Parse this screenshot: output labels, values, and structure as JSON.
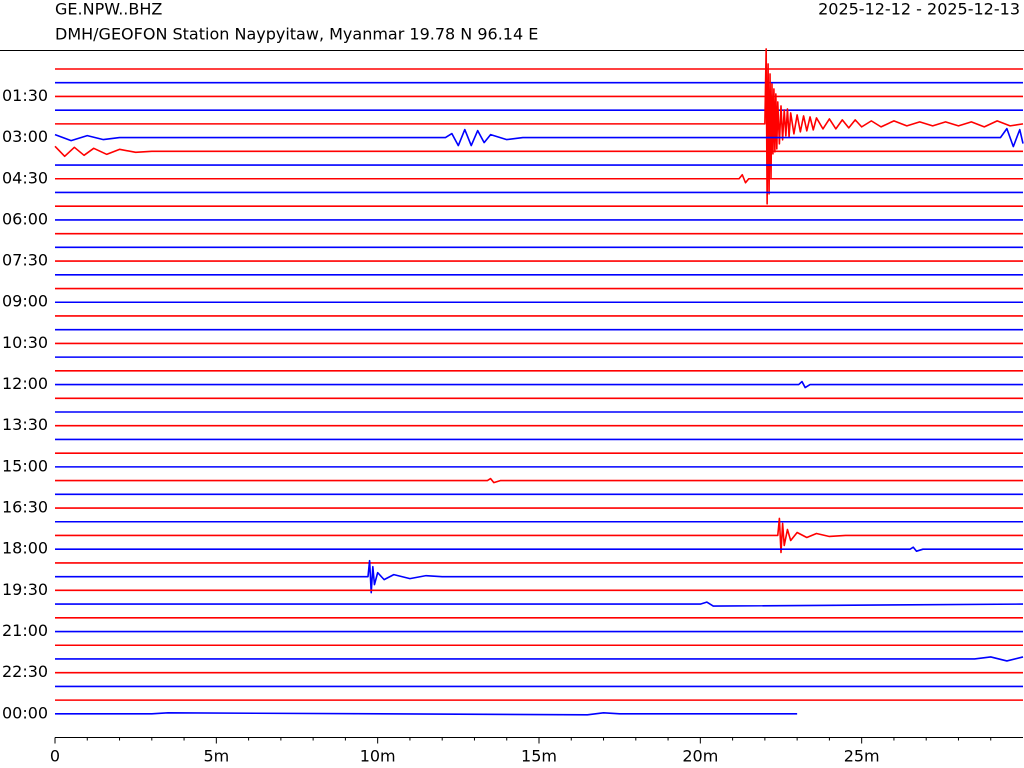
{
  "chart_data": {
    "type": "helicorder",
    "title": "GE.NPW..BHZ",
    "subtitle": "DMH/GEOFON Station Naypyitaw, Myanmar  19.78 N 96.14 E",
    "date_range": "2025-12-12 - 2025-12-13",
    "xlim": [
      0,
      30
    ],
    "xticks": [
      0,
      {
        "value": 5,
        "label": "5m"
      },
      {
        "value": 10,
        "label": "10m"
      },
      {
        "value": 15,
        "label": "15m"
      },
      {
        "value": 20,
        "label": "20m"
      },
      {
        "value": 25,
        "label": "25m"
      }
    ],
    "xminorticks": [
      1,
      2,
      3,
      4,
      6,
      7,
      8,
      9,
      11,
      12,
      13,
      14,
      16,
      17,
      18,
      19,
      21,
      22,
      23,
      24,
      26,
      27,
      28,
      29
    ],
    "categories": [
      null,
      null,
      "01:30",
      null,
      null,
      "03:00",
      null,
      null,
      "04:30",
      null,
      null,
      "06:00",
      null,
      null,
      "07:30",
      null,
      null,
      "09:00",
      null,
      null,
      "10:30",
      null,
      null,
      "12:00",
      null,
      null,
      "13:30",
      null,
      null,
      "15:00",
      null,
      null,
      "16:30",
      null,
      null,
      "18:00",
      null,
      null,
      "19:30",
      null,
      null,
      "21:00",
      null,
      null,
      "22:30",
      null,
      null,
      "00:00"
    ],
    "series": [
      {
        "color": "#ff0000",
        "x": [
          0,
          30
        ],
        "values": [
          0,
          0
        ]
      },
      {
        "color": "#0000ff",
        "x": [
          0,
          30
        ],
        "values": [
          0,
          0
        ]
      },
      {
        "color": "#ff0000",
        "x": [
          0,
          30
        ],
        "values": [
          0,
          0
        ]
      },
      {
        "color": "#0000ff",
        "x": [
          0,
          30
        ],
        "values": [
          0,
          0
        ]
      },
      {
        "color": "#ff0000",
        "x": [
          0,
          22.0,
          22.04,
          22.07,
          22.1,
          22.13,
          22.16,
          22.19,
          22.22,
          22.25,
          22.28,
          22.31,
          22.34,
          22.37,
          22.4,
          22.45,
          22.5,
          22.55,
          22.6,
          22.65,
          22.7,
          22.75,
          22.8,
          22.9,
          23.0,
          23.1,
          23.2,
          23.3,
          23.4,
          23.5,
          23.6,
          23.8,
          24.0,
          24.2,
          24.4,
          24.6,
          24.8,
          25.0,
          25.3,
          25.6,
          26.0,
          26.4,
          26.8,
          27.2,
          27.6,
          28.0,
          28.4,
          28.8,
          29.2,
          29.6,
          30
        ],
        "values": [
          0,
          0,
          75,
          -80,
          60,
          -70,
          50,
          -55,
          40,
          -30,
          35,
          -28,
          30,
          -25,
          22,
          -20,
          18,
          -16,
          14,
          -12,
          15,
          -13,
          11,
          -10,
          9,
          -8,
          8,
          -7,
          7,
          -6,
          6,
          -5,
          5,
          -5,
          4,
          -4,
          4,
          -3,
          3,
          -3,
          3,
          -2,
          2,
          -2,
          2,
          -2,
          2,
          -3,
          3,
          -2,
          0
        ]
      },
      {
        "color": "#0000ff",
        "x": [
          0,
          0.5,
          1,
          1.5,
          2,
          12.1,
          12.3,
          12.5,
          12.7,
          12.9,
          13.1,
          13.3,
          13.5,
          14,
          14.5,
          29.3,
          29.5,
          29.7,
          29.9,
          30
        ],
        "values": [
          3,
          -3,
          2,
          -2,
          0,
          0,
          4,
          -8,
          8,
          -8,
          7,
          -5,
          3,
          -2,
          0,
          0,
          9,
          -9,
          8,
          -6
        ]
      },
      {
        "color": "#ff0000",
        "x": [
          0,
          0.3,
          0.6,
          0.9,
          1.2,
          1.6,
          2,
          2.5,
          3,
          30
        ],
        "values": [
          5,
          -5,
          4,
          -4,
          3,
          -3,
          2,
          -1,
          0,
          0
        ]
      },
      {
        "color": "#0000ff",
        "x": [
          0,
          30
        ],
        "values": [
          0,
          0
        ]
      },
      {
        "color": "#ff0000",
        "x": [
          0,
          21.2,
          21.3,
          21.4,
          21.5,
          30
        ],
        "values": [
          0,
          0,
          4,
          -4,
          0,
          0
        ]
      },
      {
        "color": "#0000ff",
        "x": [
          0,
          30
        ],
        "values": [
          0,
          0
        ]
      },
      {
        "color": "#ff0000",
        "x": [
          0,
          30
        ],
        "values": [
          0,
          0
        ]
      },
      {
        "color": "#0000ff",
        "x": [
          0,
          30
        ],
        "values": [
          0,
          0
        ]
      },
      {
        "color": "#ff0000",
        "x": [
          0,
          30
        ],
        "values": [
          0,
          0
        ]
      },
      {
        "color": "#0000ff",
        "x": [
          0,
          30
        ],
        "values": [
          0,
          0
        ]
      },
      {
        "color": "#ff0000",
        "x": [
          0,
          30
        ],
        "values": [
          0,
          0
        ]
      },
      {
        "color": "#0000ff",
        "x": [
          0,
          30
        ],
        "values": [
          0,
          0
        ]
      },
      {
        "color": "#ff0000",
        "x": [
          0,
          30
        ],
        "values": [
          0,
          0
        ]
      },
      {
        "color": "#0000ff",
        "x": [
          0,
          30
        ],
        "values": [
          0,
          0
        ]
      },
      {
        "color": "#ff0000",
        "x": [
          0,
          30
        ],
        "values": [
          0,
          0
        ]
      },
      {
        "color": "#0000ff",
        "x": [
          0,
          30
        ],
        "values": [
          0,
          0
        ]
      },
      {
        "color": "#ff0000",
        "x": [
          0,
          30
        ],
        "values": [
          0,
          0
        ]
      },
      {
        "color": "#0000ff",
        "x": [
          0,
          30
        ],
        "values": [
          0,
          0
        ]
      },
      {
        "color": "#ff0000",
        "x": [
          0,
          30
        ],
        "values": [
          0,
          0
        ]
      },
      {
        "color": "#0000ff",
        "x": [
          0,
          23.05,
          23.15,
          23.25,
          23.4,
          30
        ],
        "values": [
          0,
          0,
          3,
          -3,
          0,
          0
        ]
      },
      {
        "color": "#ff0000",
        "x": [
          0,
          30
        ],
        "values": [
          0,
          0
        ]
      },
      {
        "color": "#0000ff",
        "x": [
          0,
          30
        ],
        "values": [
          0,
          0
        ]
      },
      {
        "color": "#ff0000",
        "x": [
          0,
          30
        ],
        "values": [
          0,
          0
        ]
      },
      {
        "color": "#0000ff",
        "x": [
          0,
          30
        ],
        "values": [
          0,
          0
        ]
      },
      {
        "color": "#ff0000",
        "x": [
          0,
          30
        ],
        "values": [
          0,
          0
        ]
      },
      {
        "color": "#0000ff",
        "x": [
          0,
          30
        ],
        "values": [
          0,
          0
        ]
      },
      {
        "color": "#ff0000",
        "x": [
          0,
          13.4,
          13.5,
          13.6,
          13.8,
          30
        ],
        "values": [
          0,
          0,
          2,
          -2,
          0,
          0
        ]
      },
      {
        "color": "#0000ff",
        "x": [
          0,
          30
        ],
        "values": [
          0,
          0
        ]
      },
      {
        "color": "#ff0000",
        "x": [
          0,
          30
        ],
        "values": [
          0,
          0
        ]
      },
      {
        "color": "#0000ff",
        "x": [
          0,
          30
        ],
        "values": [
          0,
          0
        ]
      },
      {
        "color": "#ff0000",
        "x": [
          0,
          22.4,
          22.45,
          22.5,
          22.55,
          22.6,
          22.7,
          22.8,
          23,
          23.3,
          23.6,
          24,
          24.5,
          30
        ],
        "values": [
          0,
          0,
          17,
          -17,
          12,
          -10,
          6,
          -5,
          3,
          -2,
          2,
          -1,
          0,
          0
        ]
      },
      {
        "color": "#0000ff",
        "x": [
          0,
          26.5,
          26.6,
          26.7,
          26.9,
          30
        ],
        "values": [
          0,
          0,
          2,
          -2,
          0,
          0
        ]
      },
      {
        "color": "#ff0000",
        "x": [
          0,
          30
        ],
        "values": [
          0,
          0
        ]
      },
      {
        "color": "#0000ff",
        "x": [
          0,
          9.7,
          9.75,
          9.8,
          9.85,
          9.9,
          10,
          10.2,
          10.5,
          11,
          11.5,
          12,
          30
        ],
        "values": [
          0,
          0,
          16,
          -16,
          10,
          -8,
          4,
          -3,
          2,
          -2,
          1,
          0,
          0
        ]
      },
      {
        "color": "#ff0000",
        "x": [
          0,
          30
        ],
        "values": [
          0,
          0
        ]
      },
      {
        "color": "#0000ff",
        "x": [
          0,
          20,
          20.2,
          20.4,
          30
        ],
        "values": [
          0,
          0,
          2,
          -2,
          0
        ]
      },
      {
        "color": "#ff0000",
        "x": [
          0,
          30
        ],
        "values": [
          0,
          0
        ]
      },
      {
        "color": "#0000ff",
        "x": [
          0,
          30
        ],
        "values": [
          0,
          0
        ]
      },
      {
        "color": "#ff0000",
        "x": [
          0,
          30
        ],
        "values": [
          0,
          0
        ]
      },
      {
        "color": "#0000ff",
        "x": [
          0,
          28.5,
          29,
          29.5,
          30
        ],
        "values": [
          0,
          0,
          2,
          -2,
          2
        ]
      },
      {
        "color": "#ff0000",
        "x": [
          0,
          30
        ],
        "values": [
          0,
          0
        ]
      },
      {
        "color": "#0000ff",
        "x": [
          0,
          30
        ],
        "values": [
          0,
          0
        ]
      },
      {
        "color": "#ff0000",
        "x": [
          0,
          30
        ],
        "values": [
          0,
          0
        ]
      },
      {
        "color": "#0000ff",
        "x": [
          0,
          3,
          3.5,
          16.5,
          17,
          17.5,
          23
        ],
        "values": [
          0,
          0,
          1,
          -1,
          1,
          0,
          0
        ]
      }
    ]
  }
}
